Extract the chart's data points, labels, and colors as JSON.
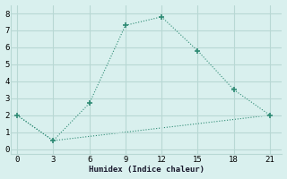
{
  "line1_x": [
    0,
    3,
    6,
    9,
    12,
    15,
    18,
    21
  ],
  "line1_y": [
    2.0,
    0.5,
    2.7,
    7.3,
    7.8,
    5.8,
    3.5,
    2.0
  ],
  "line2_x": [
    0,
    3,
    21
  ],
  "line2_y": [
    2.0,
    0.5,
    2.0
  ],
  "line_color": "#2e8b74",
  "bg_color": "#d9f0ee",
  "grid_color": "#b8d8d4",
  "xlabel": "Humidex (Indice chaleur)",
  "xlim": [
    -0.5,
    22
  ],
  "ylim": [
    -0.3,
    8.5
  ],
  "xticks": [
    0,
    3,
    6,
    9,
    12,
    15,
    18,
    21
  ],
  "yticks": [
    0,
    1,
    2,
    3,
    4,
    5,
    6,
    7,
    8
  ]
}
